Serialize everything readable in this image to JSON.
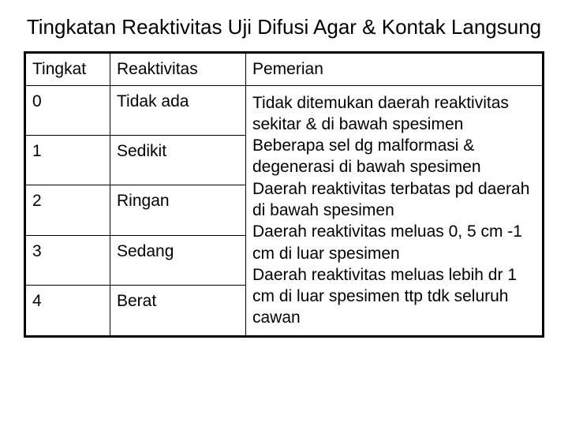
{
  "title": "Tingkatan Reaktivitas Uji Difusi Agar & Kontak Langsung",
  "table": {
    "columns": [
      "Tingkat",
      "Reaktivitas",
      "Pemerian"
    ],
    "levels": [
      {
        "tingkat": "0",
        "reaktivitas": "Tidak ada"
      },
      {
        "tingkat": "1",
        "reaktivitas": "Sedikit"
      },
      {
        "tingkat": "2",
        "reaktivitas": "Ringan"
      },
      {
        "tingkat": "3",
        "reaktivitas": "Sedang"
      },
      {
        "tingkat": "4",
        "reaktivitas": "Berat"
      }
    ],
    "descriptions": [
      "Tidak ditemukan daerah reaktivitas sekitar & di bawah spesimen",
      "Beberapa sel dg malformasi & degenerasi di bawah spesimen",
      "Daerah reaktivitas terbatas pd daerah di bawah spesimen",
      "Daerah reaktivitas meluas 0, 5 cm -1 cm di luar spesimen",
      "Daerah reaktivitas meluas lebih dr 1 cm di luar spesimen ttp tdk seluruh cawan"
    ]
  },
  "style": {
    "background_color": "#ffffff",
    "text_color": "#000000",
    "border_color": "#000000",
    "title_fontsize": 26,
    "table_fontsize": 21,
    "outer_border_width": 3,
    "inner_border_width": 1
  }
}
